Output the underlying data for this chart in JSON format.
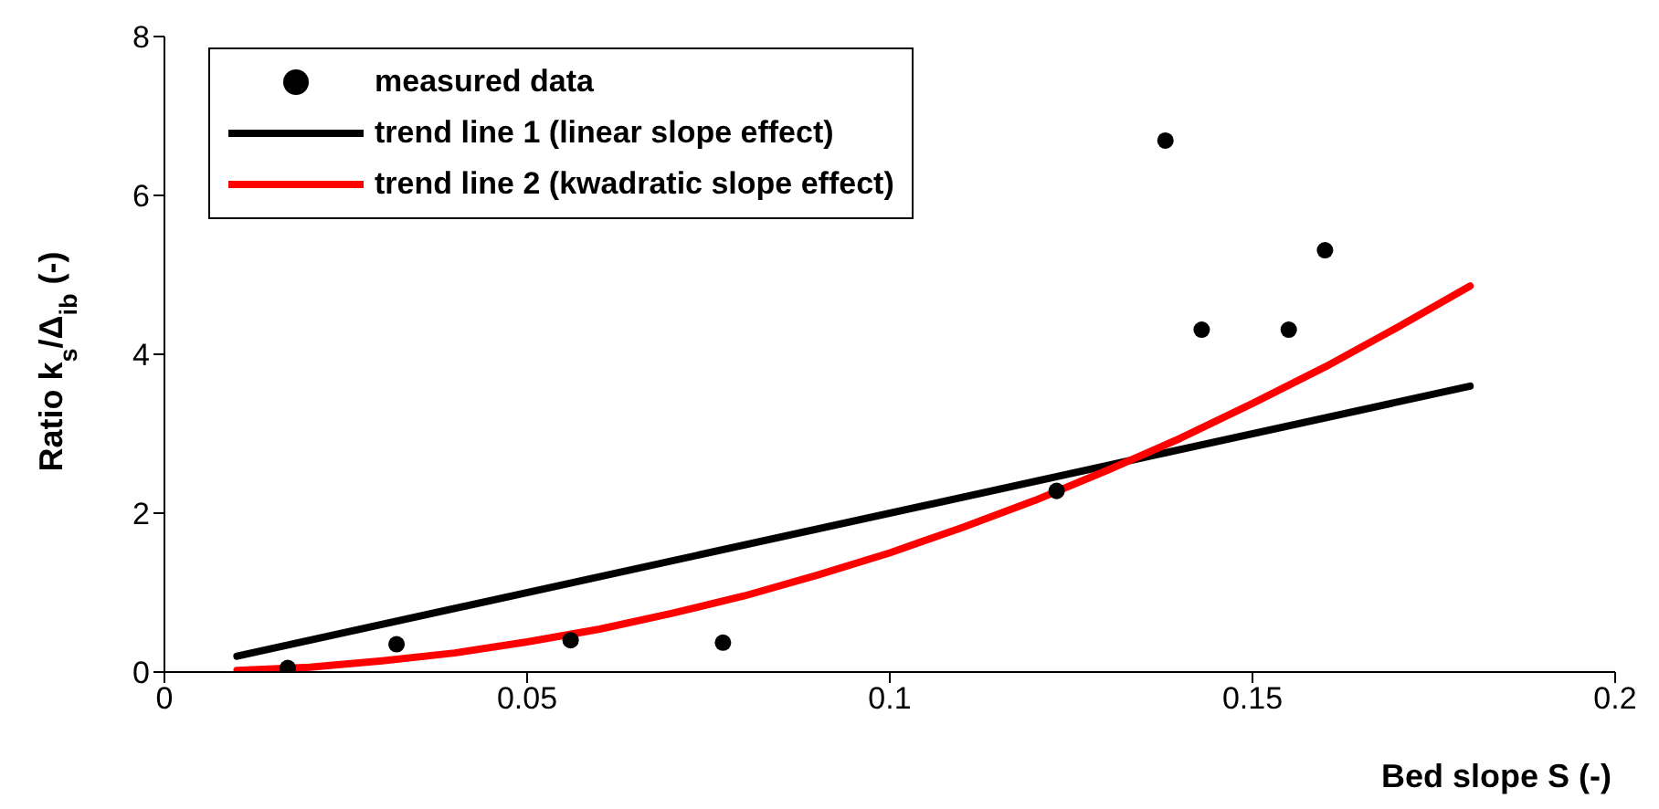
{
  "chart_data": {
    "type": "scatter",
    "xlabel": "Bed slope S (-)",
    "ylabel": "Ratio k$_{s}$/Δ$_{ib}$ (-)",
    "xlim": [
      0,
      0.2
    ],
    "xticks": [
      0,
      0.05,
      0.1,
      0.15,
      0.2
    ],
    "ylim": [
      0,
      8
    ],
    "yticks": [
      0,
      2,
      4,
      6,
      8
    ],
    "legend": "top left",
    "series": [
      {
        "name": "measured data",
        "color": "#000000",
        "x": [
          0.017,
          0.032,
          0.056,
          0.077,
          0.123,
          0.138,
          0.143,
          0.155,
          0.16
        ],
        "values": [
          0.05,
          0.35,
          0.4,
          0.37,
          2.28,
          6.69,
          4.31,
          4.31,
          5.31
        ]
      },
      {
        "name": "trend line 1 (linear slope effect)",
        "type": "line",
        "color": "#000000",
        "x": [
          0.01,
          0.18
        ],
        "values": [
          0.2,
          3.6
        ]
      },
      {
        "name": "trend line 2 (kwadratic slope effect)",
        "type": "line",
        "color": "#ff0000",
        "x": [
          0.01,
          0.02,
          0.03,
          0.04,
          0.05,
          0.06,
          0.07,
          0.08,
          0.09,
          0.1,
          0.11,
          0.12,
          0.13,
          0.14,
          0.15,
          0.16,
          0.17,
          0.18
        ],
        "values": [
          0.02,
          0.06,
          0.14,
          0.24,
          0.38,
          0.54,
          0.74,
          0.96,
          1.22,
          1.5,
          1.82,
          2.16,
          2.54,
          2.94,
          3.38,
          3.84,
          4.34,
          4.86
        ]
      }
    ]
  }
}
